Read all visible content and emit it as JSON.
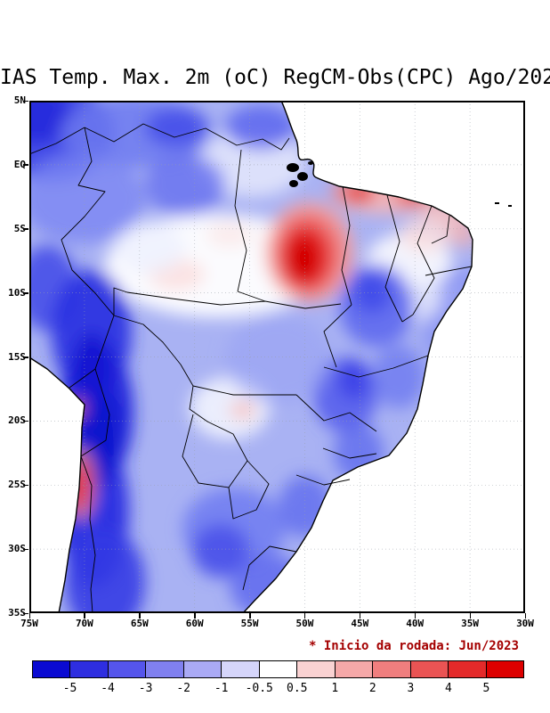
{
  "title": "IAS Temp. Max. 2m (oC) RegCM-Obs(CPC) Ago/202",
  "run_note": "* Inicio da rodada: Jun/2023",
  "map": {
    "lat_labels": [
      "5N",
      "EQ",
      "5S",
      "10S",
      "15S",
      "20S",
      "25S",
      "30S",
      "35S"
    ],
    "lon_labels": [
      "75W",
      "70W",
      "65W",
      "60W",
      "55W",
      "50W",
      "45W",
      "40W",
      "35W",
      "30W"
    ]
  },
  "colorbar": {
    "tick_labels": [
      "-5",
      "-4",
      "-3",
      "-2",
      "-1",
      "-0.5",
      "0.5",
      "1",
      "2",
      "3",
      "4",
      "5"
    ],
    "colors": [
      "#0a0ad2",
      "#2e2ee0",
      "#5555ec",
      "#8080f0",
      "#aaaaf5",
      "#d5d5fa",
      "#ffffff",
      "#fad2d2",
      "#f5a8a8",
      "#f07e7e",
      "#ea5454",
      "#e42a2a",
      "#dd0000"
    ]
  },
  "chart_data": {
    "type": "heatmap",
    "title": "IAS Temp. Max. 2m (oC) RegCM-Obs(CPC) Ago/202",
    "units": "oC",
    "x_ticks": [
      "75W",
      "70W",
      "65W",
      "60W",
      "55W",
      "50W",
      "45W",
      "40W",
      "35W",
      "30W"
    ],
    "y_ticks": [
      "5N",
      "EQ",
      "5S",
      "10S",
      "15S",
      "20S",
      "25S",
      "30S",
      "35S"
    ],
    "levels": [
      -5,
      -4,
      -3,
      -2,
      -1,
      -0.5,
      0.5,
      1,
      2,
      3,
      4,
      5
    ],
    "palette": [
      "#0a0ad2",
      "#2e2ee0",
      "#5555ec",
      "#8080f0",
      "#aaaaf5",
      "#d5d5fa",
      "#ffffff",
      "#fad2d2",
      "#f5a8a8",
      "#f07e7e",
      "#ea5454",
      "#e42a2a",
      "#dd0000"
    ],
    "annotation": "* Inicio da rodada: Jun/2023",
    "notable_bias_regions": [
      {
        "region": "Andes cordillera (~66-72W, 10S-32S)",
        "bias_oC": "-4 to -5"
      },
      {
        "region": "Northwest corner / upper Amazon (70-75W, 0-5N)",
        "bias_oC": "-3 to -5"
      },
      {
        "region": "Eastern Para / western Maranhao (~45-49W, 4-9S)",
        "bias_oC": "+3 to +5"
      },
      {
        "region": "North-northeast coast (36-44W, 1-4S)",
        "bias_oC": "+1 to +3"
      },
      {
        "region": "Chilean coast (~70W, 22-25S)",
        "bias_oC": "+3 to +5"
      },
      {
        "region": "Central band (52-65W, 7-10S)",
        "bias_oC": "-0.5 to +0.5"
      },
      {
        "region": "Most remaining land areas",
        "bias_oC": "-1 to -3"
      }
    ]
  }
}
